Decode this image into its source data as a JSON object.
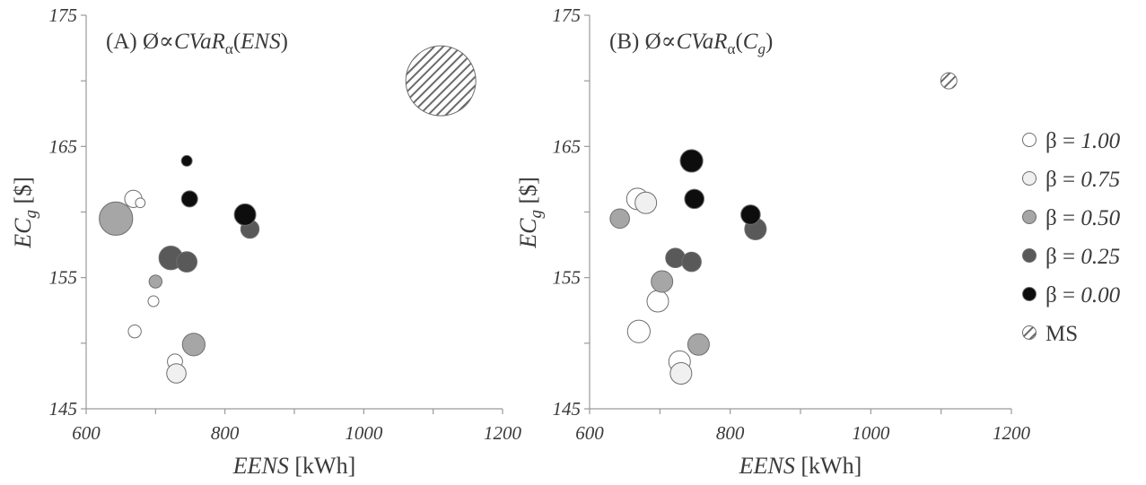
{
  "chart_data": [
    {
      "type": "scatter",
      "title_parts": {
        "prefix": "(A) Ø∝",
        "main": "CVaR",
        "sub": "α",
        "paren_open": "(",
        "arg": "ENS",
        "arg_sub": "",
        "paren_close": ")"
      },
      "xlabel": {
        "italic": "EENS",
        "rest": " [kWh]"
      },
      "ylabel": {
        "main": "EC",
        "sub": "g",
        "rest": " [$]"
      },
      "xlim": [
        600,
        1200
      ],
      "ylim": [
        145,
        175
      ],
      "xticks": [
        "600",
        "800",
        "1000",
        "1200"
      ],
      "yticks": [
        "145",
        "155",
        "165",
        "175"
      ],
      "series": [
        {
          "name": "β = 1.00",
          "points": [
            {
              "x": 670,
              "y": 150.9,
              "size": 0.24
            },
            {
              "x": 668,
              "y": 161.0,
              "size": 0.32
            },
            {
              "x": 678,
              "y": 160.7,
              "size": 0.18
            },
            {
              "x": 697,
              "y": 153.2,
              "size": 0.2
            },
            {
              "x": 728,
              "y": 148.6,
              "size": 0.28
            }
          ]
        },
        {
          "name": "β = 0.75",
          "points": [
            {
              "x": 730,
              "y": 147.7,
              "size": 0.36
            }
          ]
        },
        {
          "name": "β = 0.50",
          "points": [
            {
              "x": 643,
              "y": 159.5,
              "size": 0.62
            },
            {
              "x": 700,
              "y": 154.7,
              "size": 0.24
            },
            {
              "x": 755,
              "y": 149.9,
              "size": 0.42
            }
          ]
        },
        {
          "name": "β = 0.25",
          "points": [
            {
              "x": 722,
              "y": 156.5,
              "size": 0.44
            },
            {
              "x": 745,
              "y": 156.2,
              "size": 0.38
            },
            {
              "x": 836,
              "y": 158.7,
              "size": 0.34
            }
          ]
        },
        {
          "name": "β = 0.00",
          "points": [
            {
              "x": 745,
              "y": 163.9,
              "size": 0.2
            },
            {
              "x": 749,
              "y": 161.0,
              "size": 0.3
            },
            {
              "x": 829,
              "y": 159.8,
              "size": 0.4
            }
          ]
        },
        {
          "name": "MS",
          "points": [
            {
              "x": 1111,
              "y": 170.0,
              "size": 1.3
            }
          ]
        }
      ]
    },
    {
      "type": "scatter",
      "title_parts": {
        "prefix": "(B) Ø∝",
        "main": "CVaR",
        "sub": "α",
        "paren_open": "(",
        "arg": "C",
        "arg_sub": "g",
        "paren_close": ")"
      },
      "xlabel": {
        "italic": "EENS",
        "rest": " [kWh]"
      },
      "ylabel": {
        "main": "EC",
        "sub": "g",
        "rest": " [$]"
      },
      "xlim": [
        600,
        1200
      ],
      "ylim": [
        145,
        175
      ],
      "xticks": [
        "600",
        "800",
        "1000",
        "1200"
      ],
      "yticks": [
        "145",
        "155",
        "165",
        "175"
      ],
      "series": [
        {
          "name": "β = 1.00",
          "points": [
            {
              "x": 670,
              "y": 150.9,
              "size": 0.42
            },
            {
              "x": 668,
              "y": 161.0,
              "size": 0.4
            },
            {
              "x": 697,
              "y": 153.2,
              "size": 0.4
            },
            {
              "x": 728,
              "y": 148.6,
              "size": 0.4
            }
          ]
        },
        {
          "name": "β = 0.75",
          "points": [
            {
              "x": 680,
              "y": 160.7,
              "size": 0.4
            },
            {
              "x": 730,
              "y": 147.7,
              "size": 0.4
            }
          ]
        },
        {
          "name": "β = 0.50",
          "points": [
            {
              "x": 643,
              "y": 159.5,
              "size": 0.36
            },
            {
              "x": 703,
              "y": 154.7,
              "size": 0.4
            },
            {
              "x": 755,
              "y": 149.9,
              "size": 0.4
            }
          ]
        },
        {
          "name": "β = 0.25",
          "points": [
            {
              "x": 722,
              "y": 156.5,
              "size": 0.36
            },
            {
              "x": 745,
              "y": 156.2,
              "size": 0.36
            },
            {
              "x": 836,
              "y": 158.7,
              "size": 0.4
            }
          ]
        },
        {
          "name": "β = 0.00",
          "points": [
            {
              "x": 745,
              "y": 163.9,
              "size": 0.42
            },
            {
              "x": 749,
              "y": 161.0,
              "size": 0.36
            },
            {
              "x": 829,
              "y": 159.8,
              "size": 0.36
            }
          ]
        },
        {
          "name": "MS",
          "points": [
            {
              "x": 1111,
              "y": 170.0,
              "size": 0.3
            }
          ]
        }
      ]
    }
  ],
  "legend": {
    "placement": "right",
    "items": [
      {
        "prefix": "β = ",
        "value": "1.00",
        "fill": "#ffffff"
      },
      {
        "prefix": "β = ",
        "value": "0.75",
        "fill": "#f0f0f0"
      },
      {
        "prefix": "β = ",
        "value": "0.50",
        "fill": "#a6a6a6"
      },
      {
        "prefix": "β = ",
        "value": "0.25",
        "fill": "#595959"
      },
      {
        "prefix": "β = ",
        "value": "0.00",
        "fill": "#0d0d0d"
      },
      {
        "prefix": "",
        "value": "MS",
        "fill": "hatch"
      }
    ]
  },
  "colors": {
    "beta_1_00": "#ffffff",
    "beta_0_75": "#f0f0f0",
    "beta_0_50": "#a6a6a6",
    "beta_0_25": "#595959",
    "beta_0_00": "#0d0d0d",
    "outline": "#6e6e6e",
    "hatch_stroke": "#6a6a6a"
  }
}
